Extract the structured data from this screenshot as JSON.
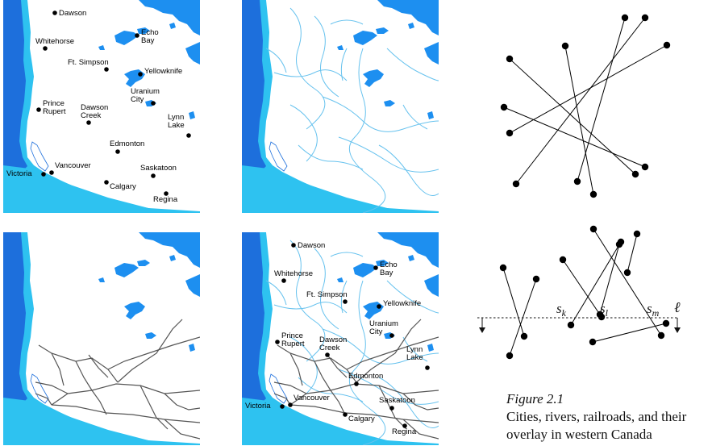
{
  "map": {
    "colors": {
      "ocean": "#2ec2f0",
      "coast": "#1d6fdc",
      "lakes": "#1d8ff0",
      "rivers": "#67c2ee",
      "railroads": "#555555",
      "land": "#ffffff",
      "city": "#000000"
    },
    "cities": [
      {
        "id": "dawson",
        "lines": [
          "Dawson"
        ]
      },
      {
        "id": "whitehorse",
        "lines": [
          "Whitehorse"
        ]
      },
      {
        "id": "echo-bay",
        "lines": [
          "Echo",
          "Bay"
        ]
      },
      {
        "id": "ft-simpson",
        "lines": [
          "Ft. Simpson"
        ]
      },
      {
        "id": "yellowknife",
        "lines": [
          "Yellowknife"
        ]
      },
      {
        "id": "uranium-city",
        "lines": [
          "Uranium",
          "City"
        ]
      },
      {
        "id": "prince-rupert",
        "lines": [
          "Prince",
          "Rupert"
        ]
      },
      {
        "id": "dawson-creek",
        "lines": [
          "Dawson",
          "Creek"
        ]
      },
      {
        "id": "lynn-lake",
        "lines": [
          "Lynn",
          "Lake"
        ]
      },
      {
        "id": "edmonton",
        "lines": [
          "Edmonton"
        ]
      },
      {
        "id": "vancouver",
        "lines": [
          "Vancouver"
        ]
      },
      {
        "id": "victoria",
        "lines": [
          "Victoria"
        ]
      },
      {
        "id": "saskatoon",
        "lines": [
          "Saskatoon"
        ]
      },
      {
        "id": "calgary",
        "lines": [
          "Calgary"
        ]
      },
      {
        "id": "regina",
        "lines": [
          "Regina"
        ]
      }
    ]
  },
  "sweep": {
    "labels": {
      "sk": "s",
      "sk_sub": "k",
      "sl": "s",
      "sl_sub": "l",
      "sm": "s",
      "sm_sub": "m",
      "line": "ℓ"
    }
  },
  "caption": {
    "figure": "Figure 2.1",
    "line1": "Cities, rivers, railroads, and their",
    "line2": "overlay in western Canada"
  }
}
